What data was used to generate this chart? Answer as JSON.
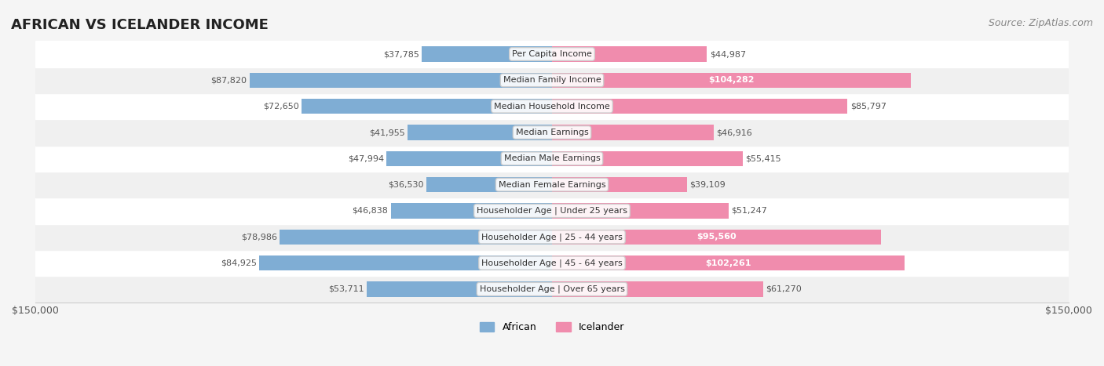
{
  "title": "AFRICAN VS ICELANDER INCOME",
  "source": "Source: ZipAtlas.com",
  "categories": [
    "Per Capita Income",
    "Median Family Income",
    "Median Household Income",
    "Median Earnings",
    "Median Male Earnings",
    "Median Female Earnings",
    "Householder Age | Under 25 years",
    "Householder Age | 25 - 44 years",
    "Householder Age | 45 - 64 years",
    "Householder Age | Over 65 years"
  ],
  "african_values": [
    37785,
    87820,
    72650,
    41955,
    47994,
    36530,
    46838,
    78986,
    84925,
    53711
  ],
  "icelander_values": [
    44987,
    104282,
    85797,
    46916,
    55415,
    39109,
    51247,
    95560,
    102261,
    61270
  ],
  "african_labels": [
    "$37,785",
    "$87,820",
    "$72,650",
    "$41,955",
    "$47,994",
    "$36,530",
    "$46,838",
    "$78,986",
    "$84,925",
    "$53,711"
  ],
  "icelander_labels": [
    "$44,987",
    "$104,282",
    "$85,797",
    "$46,916",
    "$55,415",
    "$39,109",
    "$51,247",
    "$95,560",
    "$102,261",
    "$61,270"
  ],
  "african_color": "#7fadd4",
  "african_color_dark": "#5b8fc4",
  "icelander_color": "#f08cad",
  "icelander_color_dark": "#e8608a",
  "max_value": 150000,
  "bg_color": "#f5f5f5",
  "row_bg": "#f0f0f0",
  "row_bg_alt": "#ffffff",
  "label_inside_threshold": 90000
}
